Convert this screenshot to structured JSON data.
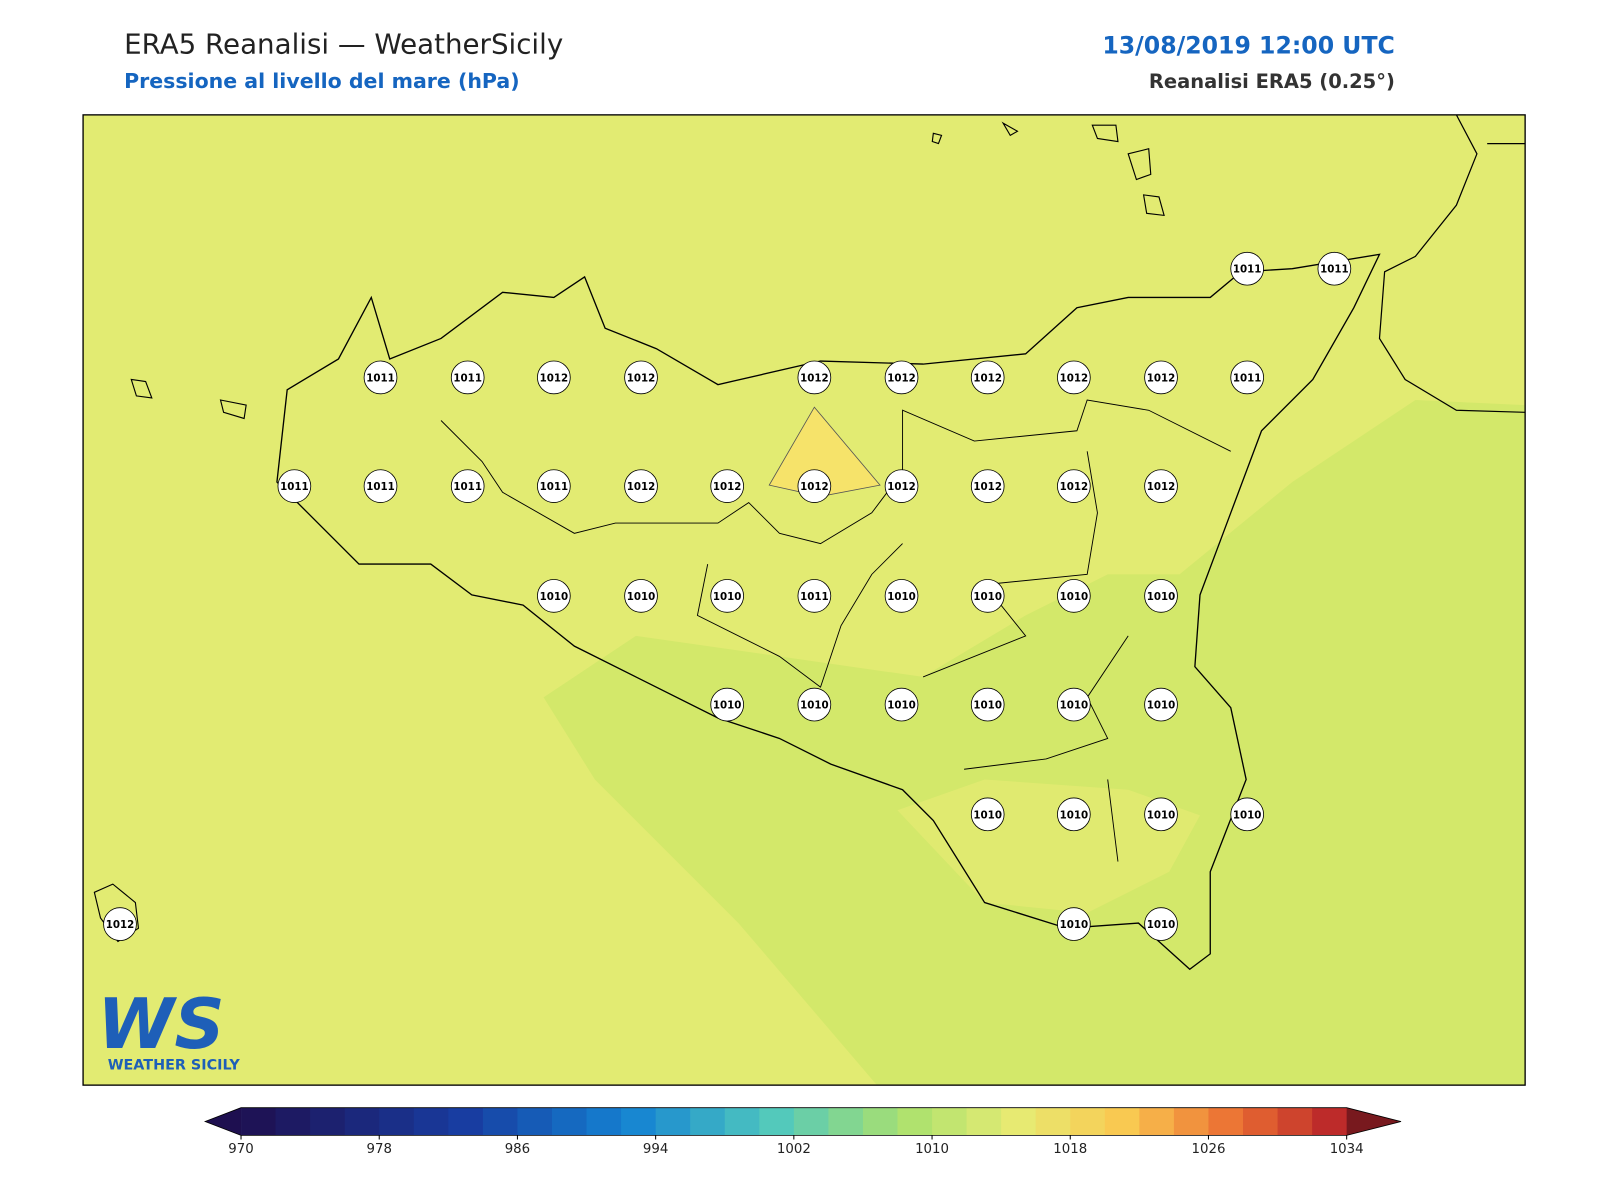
{
  "header": {
    "title": "ERA5 Reanalisi — WeatherSicily",
    "subtitle": "Pressione al livello del mare (hPa)",
    "datetime": "13/08/2019 12:00 UTC",
    "source": "Reanalisi ERA5 (0.25°)"
  },
  "stations": [
    1011,
    1011,
    1011,
    1011,
    1012,
    1012,
    1012,
    1012,
    1012,
    1012,
    1012,
    1011,
    1011,
    1011,
    1011,
    1011,
    1012,
    1012,
    1012,
    1012,
    1012,
    1012,
    1012,
    1010,
    1010,
    1010,
    1011,
    1010,
    1010,
    1010,
    1010,
    1010,
    1010,
    1010,
    1010,
    1010,
    1010,
    1010,
    1010,
    1010,
    1010,
    1012,
    1010,
    1010
  ],
  "colorbar": {
    "ticks": [
      970,
      978,
      986,
      994,
      1002,
      1010,
      1018,
      1026,
      1034
    ]
  },
  "logo": {
    "mark": "WS",
    "name": "WEATHER SICILY"
  }
}
